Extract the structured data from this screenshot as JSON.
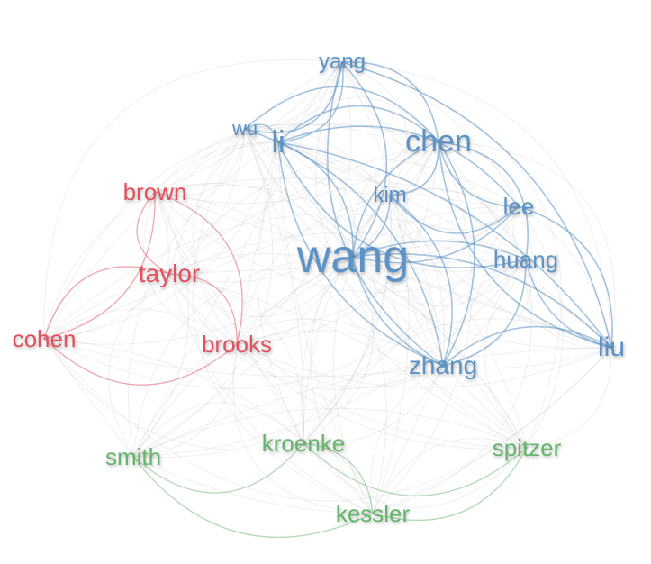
{
  "colors": {
    "blue": "#5b93c7",
    "red": "#e0525f",
    "green": "#65b56c",
    "gray_edge": "#c8c8c8"
  },
  "nodes": [
    {
      "id": "wang",
      "label": "wang",
      "cluster": "blue"
    },
    {
      "id": "yang",
      "label": "yang",
      "cluster": "blue"
    },
    {
      "id": "wu",
      "label": "wu",
      "cluster": "blue"
    },
    {
      "id": "li",
      "label": "li",
      "cluster": "blue"
    },
    {
      "id": "chen",
      "label": "chen",
      "cluster": "blue"
    },
    {
      "id": "kim",
      "label": "kim",
      "cluster": "blue"
    },
    {
      "id": "lee",
      "label": "lee",
      "cluster": "blue"
    },
    {
      "id": "huang",
      "label": "huang",
      "cluster": "blue"
    },
    {
      "id": "zhang",
      "label": "zhang",
      "cluster": "blue"
    },
    {
      "id": "liu",
      "label": "liu",
      "cluster": "blue"
    },
    {
      "id": "brown",
      "label": "brown",
      "cluster": "red"
    },
    {
      "id": "taylor",
      "label": "taylor",
      "cluster": "red"
    },
    {
      "id": "cohen",
      "label": "cohen",
      "cluster": "red"
    },
    {
      "id": "brooks",
      "label": "brooks",
      "cluster": "red"
    },
    {
      "id": "smith",
      "label": "smith",
      "cluster": "green"
    },
    {
      "id": "kroenke",
      "label": "kroenke",
      "cluster": "green"
    },
    {
      "id": "spitzer",
      "label": "spitzer",
      "cluster": "green"
    },
    {
      "id": "kessler",
      "label": "kessler",
      "cluster": "green"
    }
  ]
}
